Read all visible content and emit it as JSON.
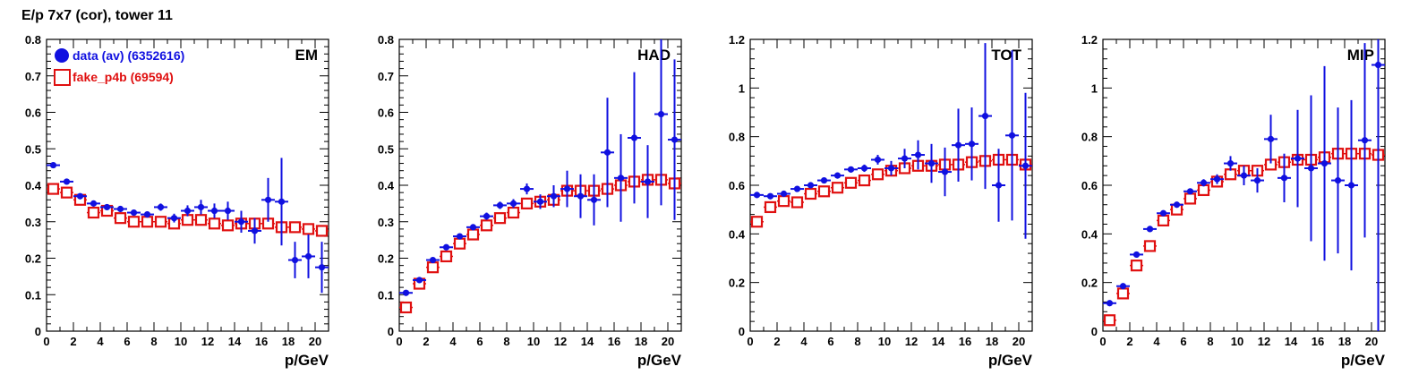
{
  "page_title": "E/p 7x7 (cor), tower 11",
  "colors": {
    "data": "#1010e0",
    "fake": "#e01010",
    "axis": "#000000"
  },
  "chart_data": [
    {
      "type": "scatter",
      "title": "EM",
      "xlabel": "p/GeV",
      "xlim": [
        0,
        21
      ],
      "ylim": [
        0,
        0.8
      ],
      "xticks": [
        "0",
        "2",
        "4",
        "6",
        "8",
        "10",
        "12",
        "14",
        "16",
        "18",
        "20"
      ],
      "yticks": [
        "0",
        "0.1",
        "0.2",
        "0.3",
        "0.4",
        "0.5",
        "0.6",
        "0.7",
        "0.8"
      ],
      "legend": [
        "data (av) (6352616)",
        "fake_p4b (69594)"
      ],
      "series": [
        {
          "name": "data (av) (6352616)",
          "marker": "filled-circle",
          "x": [
            0.5,
            1.5,
            2.5,
            3.5,
            4.5,
            5.5,
            6.5,
            7.5,
            8.5,
            9.5,
            10.5,
            11.5,
            12.5,
            13.5,
            14.5,
            15.5,
            16.5,
            17.5,
            18.5,
            19.5,
            20.5
          ],
          "y": [
            0.455,
            0.41,
            0.37,
            0.35,
            0.34,
            0.335,
            0.325,
            0.32,
            0.34,
            0.31,
            0.33,
            0.34,
            0.33,
            0.33,
            0.3,
            0.275,
            0.36,
            0.355,
            0.195,
            0.205,
            0.175
          ],
          "err": [
            0.005,
            0.005,
            0.005,
            0.005,
            0.005,
            0.006,
            0.007,
            0.008,
            0.01,
            0.012,
            0.015,
            0.02,
            0.02,
            0.025,
            0.03,
            0.035,
            0.06,
            0.12,
            0.05,
            0.06,
            0.07
          ]
        },
        {
          "name": "fake_p4b (69594)",
          "marker": "open-square",
          "x": [
            0.5,
            1.5,
            2.5,
            3.5,
            4.5,
            5.5,
            6.5,
            7.5,
            8.5,
            9.5,
            10.5,
            11.5,
            12.5,
            13.5,
            14.5,
            15.5,
            16.5,
            17.5,
            18.5,
            19.5,
            20.5
          ],
          "y": [
            0.39,
            0.38,
            0.36,
            0.325,
            0.33,
            0.31,
            0.3,
            0.3,
            0.3,
            0.295,
            0.305,
            0.305,
            0.295,
            0.29,
            0.295,
            0.295,
            0.295,
            0.285,
            0.285,
            0.28,
            0.275
          ],
          "err": [
            0.01,
            0.008,
            0.008,
            0.008,
            0.008,
            0.008,
            0.008,
            0.008,
            0.008,
            0.008,
            0.008,
            0.008,
            0.008,
            0.008,
            0.008,
            0.008,
            0.01,
            0.01,
            0.01,
            0.01,
            0.01
          ]
        }
      ]
    },
    {
      "type": "scatter",
      "title": "HAD",
      "xlabel": "p/GeV",
      "xlim": [
        0,
        21
      ],
      "ylim": [
        0,
        0.8
      ],
      "xticks": [
        "0",
        "2",
        "4",
        "6",
        "8",
        "10",
        "12",
        "14",
        "16",
        "18",
        "20"
      ],
      "yticks": [
        "0",
        "0.1",
        "0.2",
        "0.3",
        "0.4",
        "0.5",
        "0.6",
        "0.7",
        "0.8"
      ],
      "series": [
        {
          "name": "data (av) (6352616)",
          "marker": "filled-circle",
          "x": [
            0.5,
            1.5,
            2.5,
            3.5,
            4.5,
            5.5,
            6.5,
            7.5,
            8.5,
            9.5,
            10.5,
            11.5,
            12.5,
            13.5,
            14.5,
            15.5,
            16.5,
            17.5,
            18.5,
            19.5,
            20.5
          ],
          "y": [
            0.105,
            0.14,
            0.195,
            0.23,
            0.26,
            0.285,
            0.315,
            0.345,
            0.35,
            0.39,
            0.355,
            0.37,
            0.39,
            0.37,
            0.36,
            0.49,
            0.42,
            0.53,
            0.41,
            0.595,
            0.525
          ],
          "err": [
            0.003,
            0.004,
            0.005,
            0.006,
            0.007,
            0.008,
            0.01,
            0.01,
            0.012,
            0.015,
            0.02,
            0.03,
            0.05,
            0.06,
            0.07,
            0.15,
            0.12,
            0.18,
            0.1,
            0.25,
            0.22
          ]
        },
        {
          "name": "fake_p4b (69594)",
          "marker": "open-square",
          "x": [
            0.5,
            1.5,
            2.5,
            3.5,
            4.5,
            5.5,
            6.5,
            7.5,
            8.5,
            9.5,
            10.5,
            11.5,
            12.5,
            13.5,
            14.5,
            15.5,
            16.5,
            17.5,
            18.5,
            19.5,
            20.5
          ],
          "y": [
            0.065,
            0.13,
            0.175,
            0.205,
            0.24,
            0.265,
            0.29,
            0.31,
            0.325,
            0.35,
            0.355,
            0.36,
            0.385,
            0.385,
            0.385,
            0.39,
            0.4,
            0.41,
            0.415,
            0.415,
            0.405
          ],
          "err": [
            0.005,
            0.005,
            0.006,
            0.006,
            0.006,
            0.006,
            0.007,
            0.007,
            0.007,
            0.008,
            0.008,
            0.008,
            0.009,
            0.009,
            0.01,
            0.01,
            0.012,
            0.012,
            0.013,
            0.015,
            0.015
          ]
        }
      ]
    },
    {
      "type": "scatter",
      "title": "TOT",
      "xlabel": "p/GeV",
      "xlim": [
        0,
        21
      ],
      "ylim": [
        0,
        1.2
      ],
      "xticks": [
        "0",
        "2",
        "4",
        "6",
        "8",
        "10",
        "12",
        "14",
        "16",
        "18",
        "20"
      ],
      "yticks": [
        "0",
        "0.2",
        "0.4",
        "0.6",
        "0.8",
        "1",
        "1.2"
      ],
      "series": [
        {
          "name": "data (av) (6352616)",
          "marker": "filled-circle",
          "x": [
            0.5,
            1.5,
            2.5,
            3.5,
            4.5,
            5.5,
            6.5,
            7.5,
            8.5,
            9.5,
            10.5,
            11.5,
            12.5,
            13.5,
            14.5,
            15.5,
            16.5,
            17.5,
            18.5,
            19.5,
            20.5
          ],
          "y": [
            0.56,
            0.555,
            0.565,
            0.585,
            0.6,
            0.62,
            0.64,
            0.665,
            0.67,
            0.705,
            0.67,
            0.71,
            0.725,
            0.69,
            0.655,
            0.765,
            0.77,
            0.885,
            0.6,
            0.805,
            0.68
          ],
          "err": [
            0.004,
            0.004,
            0.005,
            0.006,
            0.007,
            0.008,
            0.01,
            0.012,
            0.015,
            0.02,
            0.03,
            0.04,
            0.06,
            0.08,
            0.1,
            0.15,
            0.15,
            0.3,
            0.15,
            0.35,
            0.3
          ]
        },
        {
          "name": "fake_p4b (69594)",
          "marker": "open-square",
          "x": [
            0.5,
            1.5,
            2.5,
            3.5,
            4.5,
            5.5,
            6.5,
            7.5,
            8.5,
            9.5,
            10.5,
            11.5,
            12.5,
            13.5,
            14.5,
            15.5,
            16.5,
            17.5,
            18.5,
            19.5,
            20.5
          ],
          "y": [
            0.45,
            0.51,
            0.535,
            0.53,
            0.565,
            0.575,
            0.59,
            0.61,
            0.62,
            0.645,
            0.66,
            0.67,
            0.68,
            0.68,
            0.685,
            0.685,
            0.695,
            0.7,
            0.705,
            0.705,
            0.685
          ],
          "err": [
            0.01,
            0.008,
            0.008,
            0.008,
            0.008,
            0.008,
            0.008,
            0.008,
            0.008,
            0.008,
            0.008,
            0.008,
            0.009,
            0.009,
            0.01,
            0.01,
            0.012,
            0.012,
            0.013,
            0.015,
            0.015
          ]
        }
      ]
    },
    {
      "type": "scatter",
      "title": "MIP",
      "xlabel": "p/GeV",
      "xlim": [
        0,
        21
      ],
      "ylim": [
        0,
        1.2
      ],
      "xticks": [
        "0",
        "2",
        "4",
        "6",
        "8",
        "10",
        "12",
        "14",
        "16",
        "18",
        "20"
      ],
      "yticks": [
        "0",
        "0.2",
        "0.4",
        "0.6",
        "0.8",
        "1",
        "1.2"
      ],
      "series": [
        {
          "name": "data (av) (6352616)",
          "marker": "filled-circle",
          "x": [
            0.5,
            1.5,
            2.5,
            3.5,
            4.5,
            5.5,
            6.5,
            7.5,
            8.5,
            9.5,
            10.5,
            11.5,
            12.5,
            13.5,
            14.5,
            15.5,
            16.5,
            17.5,
            18.5,
            19.5,
            20.5
          ],
          "y": [
            0.115,
            0.185,
            0.315,
            0.42,
            0.485,
            0.52,
            0.575,
            0.61,
            0.625,
            0.69,
            0.64,
            0.62,
            0.79,
            0.63,
            0.71,
            0.67,
            0.69,
            0.62,
            0.6,
            0.785,
            1.095
          ],
          "err": [
            0.003,
            0.005,
            0.006,
            0.007,
            0.008,
            0.01,
            0.012,
            0.015,
            0.02,
            0.03,
            0.04,
            0.05,
            0.1,
            0.1,
            0.2,
            0.3,
            0.4,
            0.3,
            0.35,
            0.4,
            1.1
          ]
        },
        {
          "name": "fake_p4b (69594)",
          "marker": "open-square",
          "x": [
            0.5,
            1.5,
            2.5,
            3.5,
            4.5,
            5.5,
            6.5,
            7.5,
            8.5,
            9.5,
            10.5,
            11.5,
            12.5,
            13.5,
            14.5,
            15.5,
            16.5,
            17.5,
            18.5,
            19.5,
            20.5
          ],
          "y": [
            0.045,
            0.155,
            0.27,
            0.35,
            0.455,
            0.5,
            0.545,
            0.58,
            0.615,
            0.645,
            0.66,
            0.66,
            0.685,
            0.695,
            0.705,
            0.705,
            0.715,
            0.73,
            0.73,
            0.73,
            0.725
          ],
          "err": [
            0.01,
            0.01,
            0.01,
            0.01,
            0.01,
            0.01,
            0.01,
            0.01,
            0.01,
            0.01,
            0.01,
            0.01,
            0.01,
            0.01,
            0.01,
            0.012,
            0.012,
            0.012,
            0.012,
            0.013,
            0.015
          ]
        }
      ]
    }
  ]
}
